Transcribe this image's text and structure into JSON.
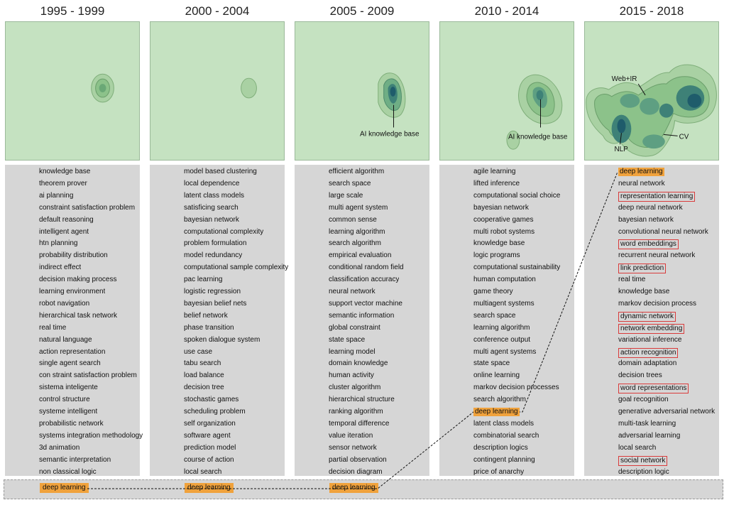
{
  "periods": [
    {
      "title": "1995 - 1999",
      "keywords": [
        "knowledge base",
        "theorem prover",
        "ai planning",
        "constraint satisfaction problem",
        "default reasoning",
        "intelligent agent",
        "htn planning",
        "probability distribution",
        "indirect effect",
        "decision making process",
        "learning environment",
        "robot navigation",
        "hierarchical task network",
        "real time",
        "natural language",
        "action representation",
        "single agent search",
        "con straint satisfaction problem",
        "sistema inteligente",
        "control structure",
        "systeme intelligent",
        "probabilistic network",
        "systems integration methodology",
        "3d animation",
        "semantic interpretation",
        "non classical logic"
      ],
      "bottom": "deep learning"
    },
    {
      "title": "2000 - 2004",
      "keywords": [
        "model based clustering",
        "local dependence",
        "latent class models",
        "satisficing search",
        "bayesian network",
        "computational complexity",
        "problem formulation",
        "model redundancy",
        "computational sample complexity",
        "pac learning",
        "logistic regression",
        "bayesian belief nets",
        "belief network",
        "phase transition",
        "spoken dialogue system",
        "use case",
        "tabu search",
        "load balance",
        "decision tree",
        "stochastic games",
        "scheduling problem",
        "self organization",
        "software agent",
        "prediction model",
        "course of action",
        "local search"
      ],
      "bottom": "deep learning"
    },
    {
      "title": "2005 - 2009",
      "annotation": "AI knowledge base",
      "keywords": [
        "efficient algorithm",
        "search space",
        "large scale",
        "multi agent system",
        "common sense",
        "learning algorithm",
        "search algorithm",
        "empirical evaluation",
        "conditional random field",
        "classification accuracy",
        "neural network",
        "support vector machine",
        "semantic information",
        "global constraint",
        "state space",
        "learning model",
        "domain knowledge",
        "human activity",
        "cluster algorithm",
        "hierarchical structure",
        "ranking algorithm",
        "temporal difference",
        "value iteration",
        "sensor network",
        "partial observation",
        "decision diagram"
      ],
      "bottom": "deep learning"
    },
    {
      "title": "2010 - 2014",
      "annotation": "AI knowledge base",
      "keywords": [
        "agile learning",
        "lifted inference",
        "computational social choice",
        "bayesian network",
        "cooperative games",
        "multi robot systems",
        "knowledge base",
        "logic programs",
        "computational sustainability",
        "human computation",
        "game theory",
        "multiagent systems",
        "search space",
        "learning algorithm",
        "conference output",
        "multi agent systems",
        "state space",
        "online learning",
        "markov decision processes",
        "search algorithm",
        "deep learning",
        "latent class models",
        "combinatorial search",
        "description logics",
        "contingent planning",
        "price of anarchy"
      ],
      "highlight_orange": [
        20
      ]
    },
    {
      "title": "2015 - 2018",
      "annotations": {
        "web_ir": "Web+IR",
        "nlp": "NLP",
        "cv": "CV"
      },
      "keywords": [
        "deep learning",
        "neural network",
        "representation learning",
        "deep neural network",
        "bayesian network",
        "convolutional neural network",
        "word embeddings",
        "recurrent neural network",
        "link prediction",
        "real time",
        "knowledge base",
        "markov decision process",
        "dynamic network",
        "network embedding",
        "variational inference",
        "action recognition",
        "domain adaptation",
        "decision trees",
        "word representations",
        "goal recognition",
        "generative adversarial network",
        "multi-task learning",
        "adversarial learning",
        "local search",
        "social network",
        "description logic"
      ],
      "highlight_orange": [
        0
      ],
      "highlight_box": [
        2,
        6,
        8,
        12,
        13,
        15,
        18,
        24
      ]
    }
  ],
  "colors": {
    "map_bg": "#c5e2c1",
    "density_dark": "#1f5c6b",
    "highlight": "#f0a23c",
    "box": "#d93b3b",
    "list_bg": "#d6d6d6"
  }
}
